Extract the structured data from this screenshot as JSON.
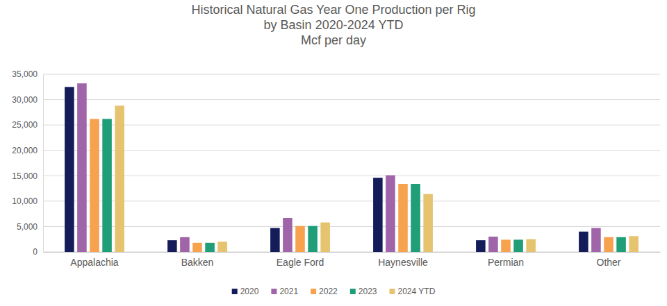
{
  "chart_data": {
    "type": "bar",
    "title": "Historical Natural Gas Year One Production per Rig\nby Basin 2020-2024 YTD",
    "subtitle": "Mcf per day",
    "categories": [
      "Appalachia",
      "Bakken",
      "Eagle Ford",
      "Haynesville",
      "Permian",
      "Other"
    ],
    "series": [
      {
        "name": "2020",
        "color": "#141d5a",
        "values": [
          32500,
          2300,
          4700,
          14600,
          2300,
          4000
        ]
      },
      {
        "name": "2021",
        "color": "#a064a8",
        "values": [
          33200,
          2900,
          6700,
          15100,
          3000,
          4700
        ]
      },
      {
        "name": "2022",
        "color": "#f7a24f",
        "values": [
          26200,
          1800,
          5100,
          13400,
          2400,
          2900
        ]
      },
      {
        "name": "2023",
        "color": "#1f9e78",
        "values": [
          26200,
          1800,
          5100,
          13400,
          2400,
          2900
        ]
      },
      {
        "name": "2024 YTD",
        "color": "#e6c36f",
        "values": [
          28800,
          2000,
          5800,
          11400,
          2500,
          3100
        ]
      }
    ],
    "ylim": [
      0,
      35000
    ],
    "yticks": [
      0,
      {
        "value": 5000,
        "label": "5,000"
      },
      {
        "value": 10000,
        "label": "10,000"
      },
      {
        "value": 15000,
        "label": "15,000"
      },
      {
        "value": 20000,
        "label": "20,000"
      },
      {
        "value": 25000,
        "label": "25,000"
      },
      {
        "value": 30000,
        "label": "30,000"
      },
      {
        "value": 35000,
        "label": "35,000"
      }
    ],
    "grid": true,
    "legend": "bottom"
  }
}
